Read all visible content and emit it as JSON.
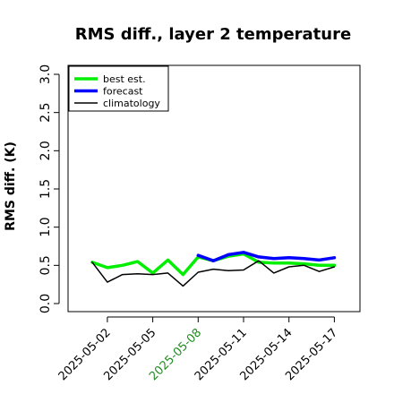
{
  "chart_data": {
    "type": "line",
    "title": "RMS diff., layer 2 temperature",
    "xlabel": "",
    "ylabel": "RMS diff. (K)",
    "ylim": [
      0,
      3
    ],
    "yticks": [
      0.0,
      0.5,
      1.0,
      1.5,
      2.0,
      2.5,
      3.0
    ],
    "ytick_labels": [
      "0.0",
      "0.5",
      "1.0",
      "1.5",
      "2.0",
      "2.5",
      "3.0"
    ],
    "x_dates": [
      "2025-05-01",
      "2025-05-02",
      "2025-05-03",
      "2025-05-04",
      "2025-05-05",
      "2025-05-06",
      "2025-05-07",
      "2025-05-08",
      "2025-05-09",
      "2025-05-10",
      "2025-05-11",
      "2025-05-12",
      "2025-05-13",
      "2025-05-14",
      "2025-05-15",
      "2025-05-16",
      "2025-05-17"
    ],
    "xticks": [
      "2025-05-02",
      "2025-05-05",
      "2025-05-08",
      "2025-05-11",
      "2025-05-14",
      "2025-05-17"
    ],
    "highlight_tick": "2025-05-08",
    "highlight_color": "#228b22",
    "legend_position": "top-left",
    "grid": false,
    "series": [
      {
        "name": "best est.",
        "color": "#00ee00",
        "values": [
          0.54,
          0.47,
          0.5,
          0.55,
          0.4,
          0.57,
          0.38,
          0.61,
          0.56,
          0.62,
          0.65,
          0.54,
          0.53,
          0.53,
          0.52,
          0.5,
          0.5
        ]
      },
      {
        "name": "forecast",
        "color": "#0000ff",
        "values": [
          null,
          null,
          null,
          null,
          null,
          null,
          null,
          0.63,
          0.56,
          0.64,
          0.67,
          0.61,
          0.59,
          0.6,
          0.59,
          0.57,
          0.6
        ]
      },
      {
        "name": "climatology",
        "color": "#000000",
        "values": [
          0.54,
          0.28,
          0.38,
          0.39,
          0.38,
          0.4,
          0.23,
          0.41,
          0.45,
          0.43,
          0.44,
          0.56,
          0.4,
          0.48,
          0.5,
          0.42,
          0.48
        ]
      }
    ]
  }
}
